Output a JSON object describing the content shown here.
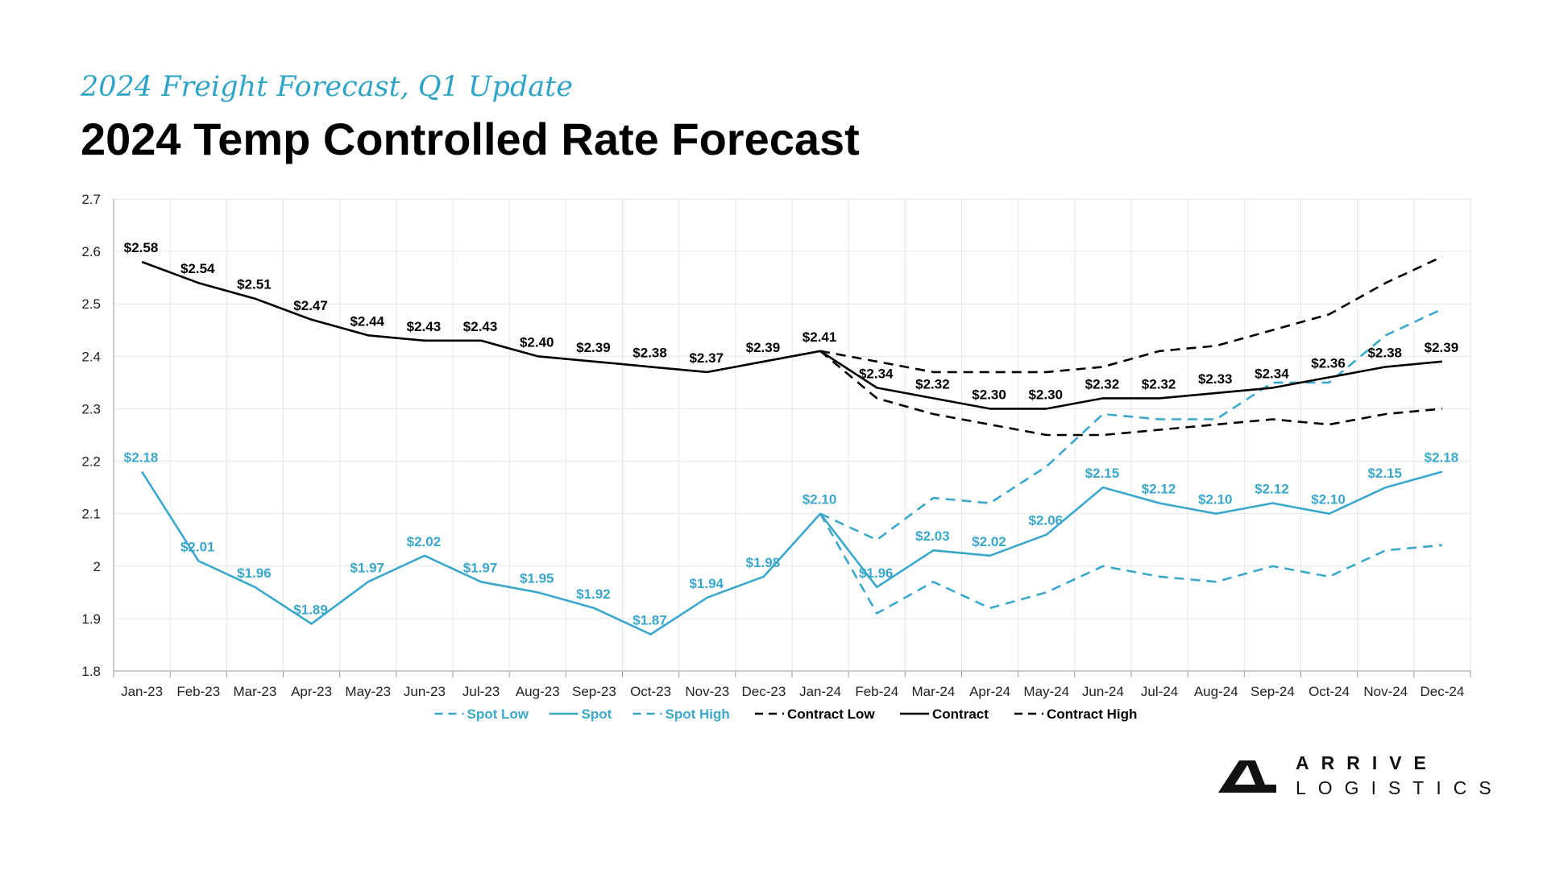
{
  "header": {
    "subtitle": "2024 Freight Forecast, Q1 Update",
    "title": "2024 Temp Controlled Rate Forecast"
  },
  "logo": {
    "line1": "ARRIVE",
    "line2": "LOGISTICS"
  },
  "colors": {
    "spot": "#3aa7cb",
    "contract": "#000000",
    "grid": "#e6e6e6",
    "accent": "#2fa4c7"
  },
  "chart_data": {
    "type": "line",
    "categories": [
      "Jan-23",
      "Feb-23",
      "Mar-23",
      "Apr-23",
      "May-23",
      "Jun-23",
      "Jul-23",
      "Aug-23",
      "Sep-23",
      "Oct-23",
      "Nov-23",
      "Dec-23",
      "Jan-24",
      "Feb-24",
      "Mar-24",
      "Apr-24",
      "May-24",
      "Jun-24",
      "Jul-24",
      "Aug-24",
      "Sep-24",
      "Oct-24",
      "Nov-24",
      "Dec-24"
    ],
    "ylim": [
      1.8,
      2.7
    ],
    "yticks": [
      "1.8",
      "1.9",
      "2",
      "2.1",
      "2.2",
      "2.3",
      "2.4",
      "2.5",
      "2.6",
      "2.7"
    ],
    "grid": true,
    "legend_position": "bottom",
    "series": [
      {
        "name": "Spot Low",
        "color": "#3aa7cb",
        "dashed": true,
        "values": [
          null,
          null,
          null,
          null,
          null,
          null,
          null,
          null,
          null,
          null,
          null,
          null,
          2.1,
          1.91,
          1.97,
          1.92,
          1.95,
          2.0,
          1.98,
          1.97,
          2.0,
          1.98,
          2.03,
          2.04
        ]
      },
      {
        "name": "Spot",
        "color": "#3aa7cb",
        "dashed": false,
        "values": [
          2.18,
          2.01,
          1.96,
          1.89,
          1.97,
          2.02,
          1.97,
          1.95,
          1.92,
          1.87,
          1.94,
          1.98,
          2.1,
          1.96,
          2.03,
          2.02,
          2.06,
          2.15,
          2.12,
          2.1,
          2.12,
          2.1,
          2.15,
          2.18
        ],
        "labels": [
          "$2.18",
          "$2.01",
          "$1.96",
          "$1.89",
          "$1.97",
          "$2.02",
          "$1.97",
          "$1.95",
          "$1.92",
          "$1.87",
          "$1.94",
          "$1.98",
          "$2.10",
          "$1.96",
          "$2.03",
          "$2.02",
          "$2.06",
          "$2.15",
          "$2.12",
          "$2.10",
          "$2.12",
          "$2.10",
          "$2.15",
          "$2.18"
        ]
      },
      {
        "name": "Spot High",
        "color": "#3aa7cb",
        "dashed": true,
        "values": [
          null,
          null,
          null,
          null,
          null,
          null,
          null,
          null,
          null,
          null,
          null,
          null,
          2.1,
          2.05,
          2.13,
          2.12,
          2.19,
          2.29,
          2.28,
          2.28,
          2.35,
          2.35,
          2.44,
          2.49
        ]
      },
      {
        "name": "Contract Low",
        "color": "#000000",
        "dashed": true,
        "values": [
          null,
          null,
          null,
          null,
          null,
          null,
          null,
          null,
          null,
          null,
          null,
          null,
          2.41,
          2.32,
          2.29,
          2.27,
          2.25,
          2.25,
          2.26,
          2.27,
          2.28,
          2.27,
          2.29,
          2.3
        ]
      },
      {
        "name": "Contract",
        "color": "#000000",
        "dashed": false,
        "values": [
          2.58,
          2.54,
          2.51,
          2.47,
          2.44,
          2.43,
          2.43,
          2.4,
          2.39,
          2.38,
          2.37,
          2.39,
          2.41,
          2.34,
          2.32,
          2.3,
          2.3,
          2.32,
          2.32,
          2.33,
          2.34,
          2.36,
          2.38,
          2.39
        ],
        "labels": [
          "$2.58",
          "$2.54",
          "$2.51",
          "$2.47",
          "$2.44",
          "$2.43",
          "$2.43",
          "$2.40",
          "$2.39",
          "$2.38",
          "$2.37",
          "$2.39",
          "$2.41",
          "$2.34",
          "$2.32",
          "$2.30",
          "$2.30",
          "$2.32",
          "$2.32",
          "$2.33",
          "$2.34",
          "$2.36",
          "$2.38",
          "$2.39"
        ]
      },
      {
        "name": "Contract High",
        "color": "#000000",
        "dashed": true,
        "values": [
          null,
          null,
          null,
          null,
          null,
          null,
          null,
          null,
          null,
          null,
          null,
          null,
          2.41,
          2.39,
          2.37,
          2.37,
          2.37,
          2.38,
          2.41,
          2.42,
          2.45,
          2.48,
          2.54,
          2.59
        ]
      }
    ]
  }
}
